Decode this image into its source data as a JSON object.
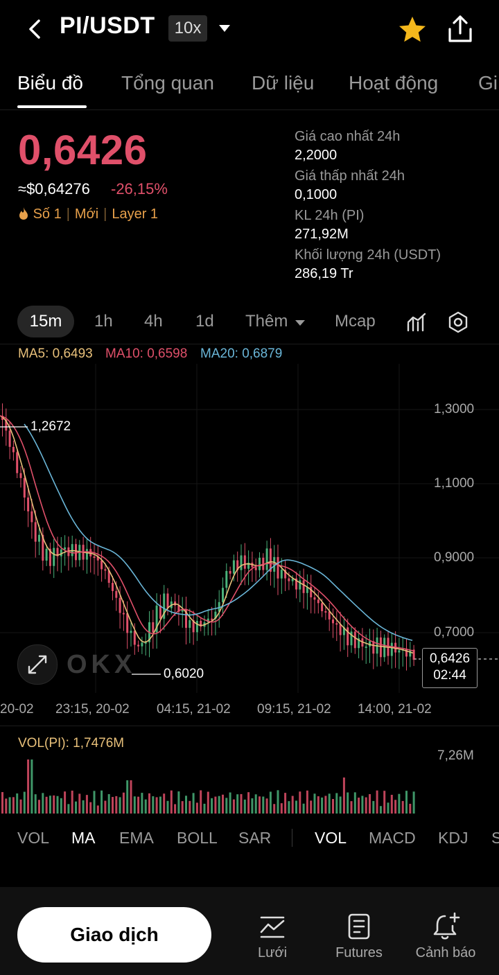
{
  "header": {
    "pair": "PI/USDT",
    "leverage": "10x"
  },
  "tabs": [
    "Biểu đồ",
    "Tổng quan",
    "Dữ liệu",
    "Hoạt động",
    "Gi"
  ],
  "ticker": {
    "price": "0,6426",
    "usd_price": "≈$0,64276",
    "change": "-26,15%",
    "tag_rank": "Số 1",
    "tag_new": "Mới",
    "tag_layer": "Layer 1",
    "up_color": "#4ab27a",
    "down_color": "#e0506a"
  },
  "stats": [
    {
      "label": "Giá cao nhất 24h",
      "value": "2,2000"
    },
    {
      "label": "Giá thấp nhất 24h",
      "value": "0,1000"
    },
    {
      "label": "KL 24h (PI)",
      "value": "271,92M"
    },
    {
      "label": "Khối lượng 24h (USDT)",
      "value": "286,19 Tr"
    }
  ],
  "timeframes": {
    "active": "15m",
    "items": [
      "1h",
      "4h",
      "1d"
    ],
    "more": "Thêm",
    "mcap": "Mcap"
  },
  "chart": {
    "ma5": "MA5: 0,6493",
    "ma10": "MA10: 0,6598",
    "ma20": "MA20: 0,6879",
    "y_ticks": [
      "1,3000",
      "1,1000",
      "0,9000",
      "0,7000"
    ],
    "high_label": "1,2672",
    "low_label": "0,6020",
    "last_price": "0,6426",
    "countdown": "02:44",
    "x_ticks": [
      "20-02",
      "23:15, 20-02",
      "04:15, 21-02",
      "09:15, 21-02",
      "14:00, 21-02"
    ],
    "watermark": "OKX",
    "ma5_color": "#e8c07a",
    "ma10_color": "#e0506a",
    "ma20_color": "#6ab6d8"
  },
  "volume": {
    "label": "VOL(PI): 1,7476M",
    "max": "7,26M"
  },
  "indicators": [
    "VOL",
    "MA",
    "EMA",
    "BOLL",
    "SAR",
    "VOL",
    "MACD",
    "KDJ",
    "S"
  ],
  "bottom": {
    "trade": "Giao dịch",
    "grid": "Lưới",
    "futures": "Futures",
    "alert": "Cảnh báo"
  }
}
